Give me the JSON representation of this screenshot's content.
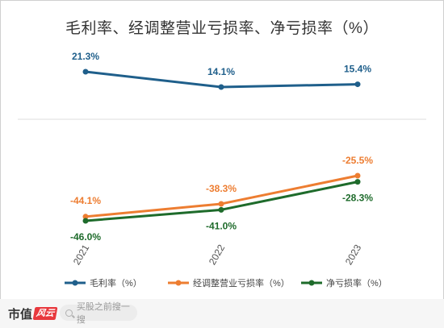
{
  "chart_data": {
    "type": "line",
    "title": "毛利率、经调整营业亏损率、净亏损率（%）",
    "categories": [
      "2021",
      "2022",
      "2023"
    ],
    "series": [
      {
        "name": "毛利率（%）",
        "color": "#1f5f8b",
        "values": [
          21.3,
          14.1,
          15.4
        ],
        "labels": [
          "21.3%",
          "14.1%",
          "15.4%"
        ]
      },
      {
        "name": "经调整营业亏损率（%）",
        "color": "#ed7d31",
        "values": [
          -44.1,
          -38.3,
          -25.5
        ],
        "labels": [
          "-44.1%",
          "-38.3%",
          "-25.5%"
        ]
      },
      {
        "name": "净亏损率（%）",
        "color": "#1e6b2b",
        "values": [
          -46.0,
          -41.0,
          -28.3
        ],
        "labels": [
          "-46.0%",
          "-41.0%",
          "-28.3%"
        ]
      }
    ],
    "legend_position": "bottom",
    "grid": false
  },
  "footer": {
    "brand_text": "市值",
    "brand_mark_text": "风云",
    "search_placeholder": "买股之前搜一搜",
    "search_icon": "search-icon"
  }
}
